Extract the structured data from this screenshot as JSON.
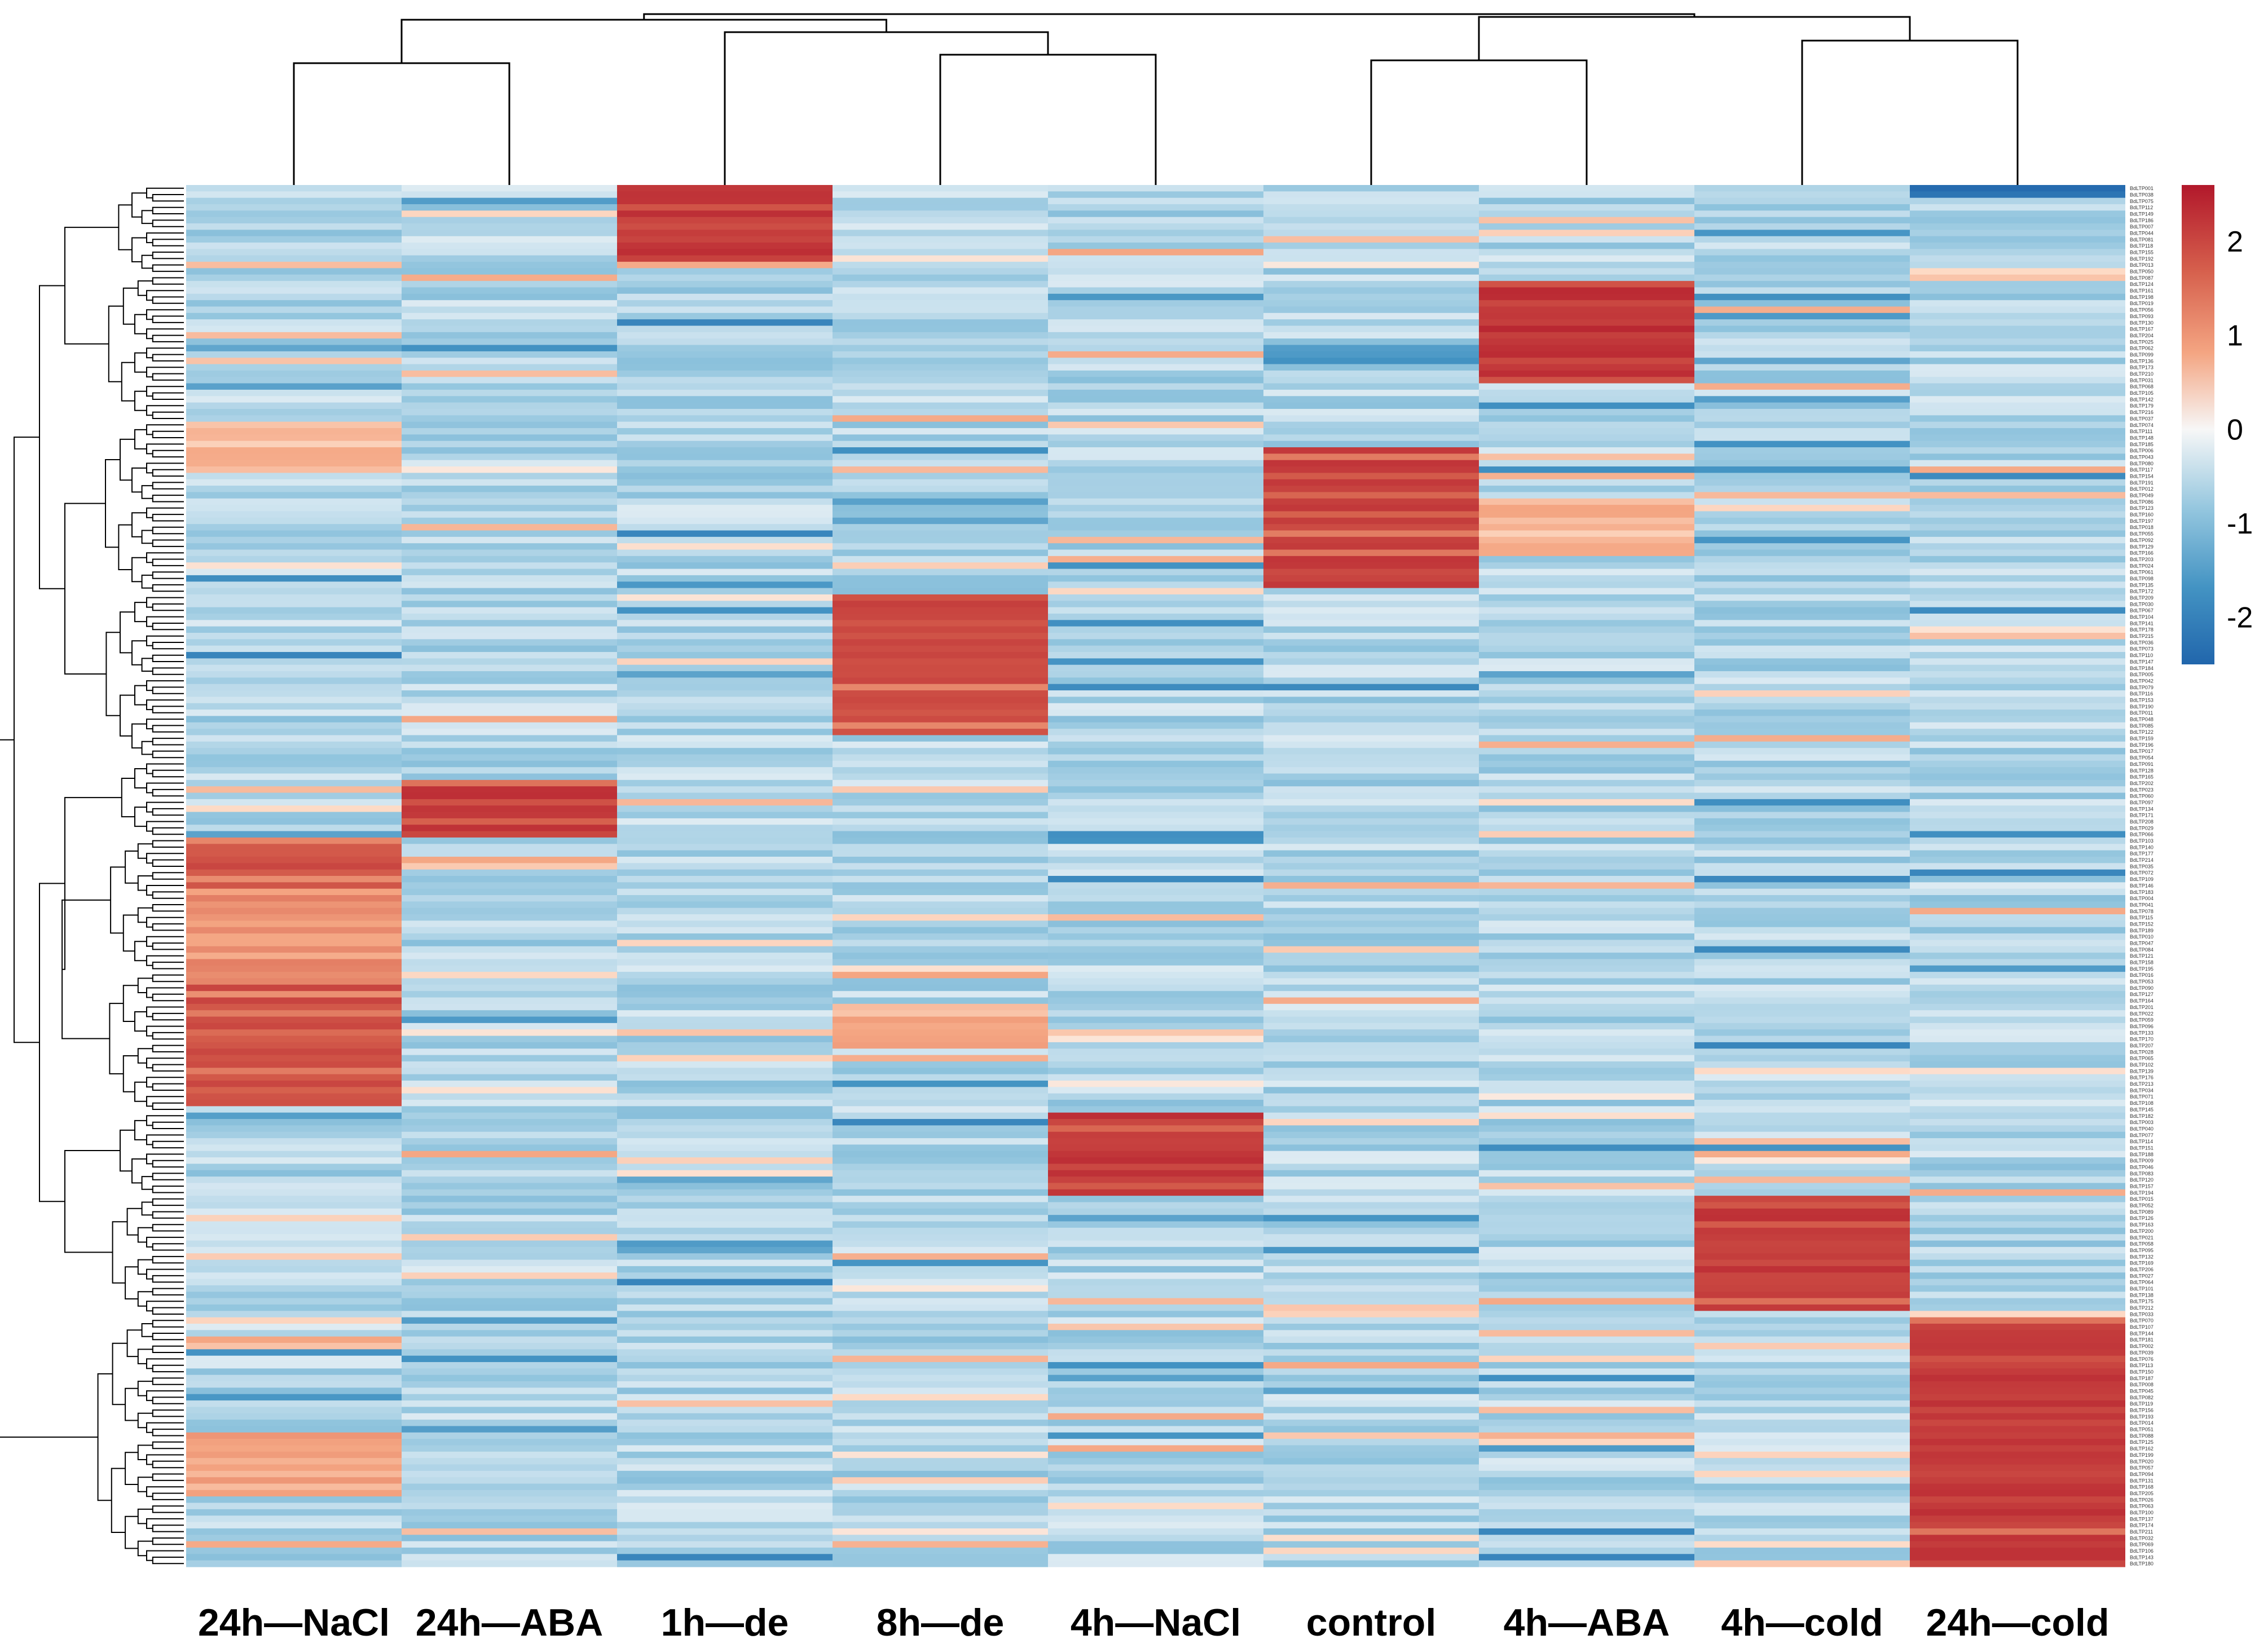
{
  "chart_data": {
    "type": "heatmap",
    "title": "",
    "columns": [
      "24h—NaCl",
      "24h—ABA",
      "1h—de",
      "8h—de",
      "4h—NaCl",
      "control",
      "4h—ABA",
      "4h—cold",
      "24h—cold"
    ],
    "n_rows": 216,
    "colorbar": {
      "ticks": [
        2,
        1,
        0,
        -1,
        -2
      ],
      "range": [
        -2.5,
        2.6
      ]
    },
    "colors": {
      "low": "#2166ac",
      "mid": "#f7f7f7",
      "high": "#b2182b"
    },
    "clusters": [
      {
        "rows": [
          0,
          12
        ],
        "high_column": "1h—de",
        "value": 2.3
      },
      {
        "rows": [
          15,
          31
        ],
        "high_column": "4h—ABA",
        "value": 2.4
      },
      {
        "rows": [
          41,
          63
        ],
        "high_column": "control",
        "value": 2.2
      },
      {
        "rows": [
          64,
          86
        ],
        "high_column": "8h—de",
        "value": 2.1
      },
      {
        "rows": [
          93,
          102
        ],
        "high_column": "24h—ABA",
        "value": 2.3
      },
      {
        "rows": [
          102,
          144
        ],
        "high_column": "24h—NaCl",
        "value": 2.0
      },
      {
        "rows": [
          145,
          158
        ],
        "high_column": "4h—NaCl",
        "value": 2.3
      },
      {
        "rows": [
          158,
          176
        ],
        "high_column": "4h—cold",
        "value": 2.3
      },
      {
        "rows": [
          177,
          216
        ],
        "high_column": "24h—cold",
        "value": 2.3
      }
    ],
    "column_dendrogram": "((24h-NaCl,24h-ABA),(1h-de,(8h-de,4h-NaCl))),((control,4h-ABA),(4h-cold,24h-cold))",
    "row_dendrogram": "hierarchical clustering of 216 genes",
    "row_label_prefix": "BdLTP"
  }
}
